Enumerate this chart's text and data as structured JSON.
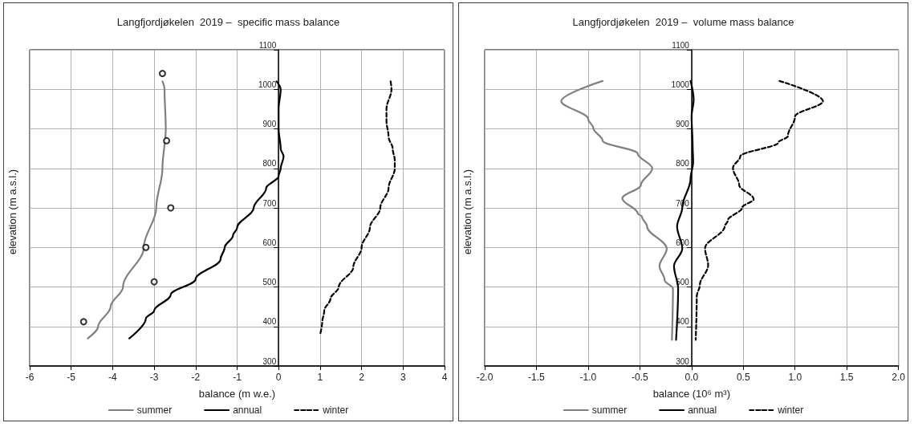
{
  "chart_data": [
    {
      "type": "line",
      "title": "Langfjordjøkelen  2019 –  specific mass balance",
      "xlabel": "balance (m w.e.)",
      "ylabel": "elevation (m a.s.l.)",
      "xlim": [
        -6,
        4
      ],
      "xticks": [
        -6,
        -5,
        -4,
        -3,
        -2,
        -1,
        0,
        1,
        2,
        3,
        4
      ],
      "ylim": [
        300,
        1100
      ],
      "yticks": [
        300,
        400,
        500,
        600,
        700,
        800,
        900,
        1000,
        1100
      ],
      "grid": true,
      "legend": "bottom",
      "marker": "none",
      "series": [
        {
          "name": "summer",
          "color": "#808080",
          "line_style": "solid",
          "x": [
            -2.8,
            -2.75,
            -2.72,
            -2.8,
            -2.95,
            -3.25,
            -3.75,
            -4.05,
            -4.35,
            -4.6
          ],
          "values": [
            1020,
            1000,
            900,
            800,
            700,
            600,
            500,
            450,
            400,
            370
          ]
        },
        {
          "name": "annual",
          "color": "#000000",
          "line_style": "solid",
          "x": [
            -0.05,
            0.05,
            0.0,
            0.0,
            0.05,
            0.12,
            0.05,
            0.0,
            -0.3,
            -0.6,
            -1.0,
            -1.1,
            -1.3,
            -1.4,
            -2.0,
            -2.6,
            -3.0,
            -3.2,
            -3.6
          ],
          "values": [
            1020,
            1000,
            950,
            900,
            850,
            830,
            800,
            780,
            750,
            700,
            650,
            630,
            600,
            570,
            520,
            480,
            440,
            420,
            370
          ]
        },
        {
          "name": "winter",
          "color": "#000000",
          "line_style": "dashed",
          "x": [
            2.7,
            2.72,
            2.6,
            2.6,
            2.65,
            2.75,
            2.8,
            2.8,
            2.65,
            2.45,
            2.2,
            2.0,
            1.8,
            1.45,
            1.25,
            1.1,
            1.05,
            1.0
          ],
          "values": [
            1020,
            1000,
            950,
            920,
            880,
            850,
            820,
            800,
            750,
            700,
            650,
            600,
            550,
            500,
            470,
            440,
            410,
            380
          ]
        },
        {
          "type": "scatter",
          "marker": "circle",
          "color": "#000000",
          "x": [
            -2.8,
            -2.7,
            -2.6,
            -3.2,
            -3.0,
            -4.7
          ],
          "values": [
            1040,
            870,
            700,
            600,
            513,
            412
          ]
        }
      ]
    },
    {
      "type": "line",
      "title": "Langfjordjøkelen  2019 –  volume mass balance",
      "xlabel": "balance (10⁶ m³)",
      "ylabel": "elevation (m a.s.l.)",
      "xlim": [
        -2,
        2
      ],
      "xticks": [
        {
          "value": -2,
          "label": "-2.0"
        },
        {
          "value": -1.5,
          "label": "-1.5"
        },
        {
          "value": -1,
          "label": "-1.0"
        },
        {
          "value": -0.5,
          "label": "-0.5"
        },
        {
          "value": 0,
          "label": "0.0"
        },
        {
          "value": 0.5,
          "label": "0.5"
        },
        {
          "value": 1,
          "label": "1.0"
        },
        {
          "value": 1.5,
          "label": "1.5"
        },
        {
          "value": 2,
          "label": "2.0"
        }
      ],
      "ylim": [
        300,
        1100
      ],
      "yticks": [
        300,
        400,
        500,
        600,
        700,
        800,
        900,
        1000,
        1100
      ],
      "grid": true,
      "legend": "bottom",
      "marker": "none",
      "series": [
        {
          "name": "summer",
          "color": "#808080",
          "line_style": "solid",
          "x": [
            -0.86,
            -1.26,
            -1.0,
            -0.95,
            -0.86,
            -0.52,
            -0.38,
            -0.49,
            -0.67,
            -0.52,
            -0.48,
            -0.43,
            -0.24,
            -0.31,
            -0.26,
            -0.18,
            -0.19
          ],
          "values": [
            1021,
            970,
            925,
            902,
            870,
            837,
            800,
            758,
            724,
            686,
            678,
            653,
            597,
            553,
            517,
            496,
            366
          ]
        },
        {
          "name": "annual",
          "color": "#000000",
          "line_style": "solid",
          "x": [
            -0.01,
            0.02,
            0.0,
            0.01,
            0.015,
            -0.01,
            -0.09,
            -0.14,
            -0.09,
            -0.17,
            -0.13,
            -0.15
          ],
          "values": [
            1021,
            974,
            931,
            859,
            816,
            773,
            701,
            653,
            597,
            553,
            496,
            366
          ]
        },
        {
          "name": "winter",
          "color": "#000000",
          "line_style": "dashed",
          "x": [
            0.85,
            1.27,
            1.0,
            0.93,
            0.84,
            0.47,
            0.4,
            0.46,
            0.6,
            0.49,
            0.35,
            0.32,
            0.13,
            0.16,
            0.08,
            0.05,
            0.04
          ],
          "values": [
            1021,
            970,
            931,
            881,
            866,
            830,
            801,
            758,
            722,
            701,
            668,
            653,
            598,
            555,
            505,
            476,
            366
          ]
        }
      ]
    }
  ]
}
